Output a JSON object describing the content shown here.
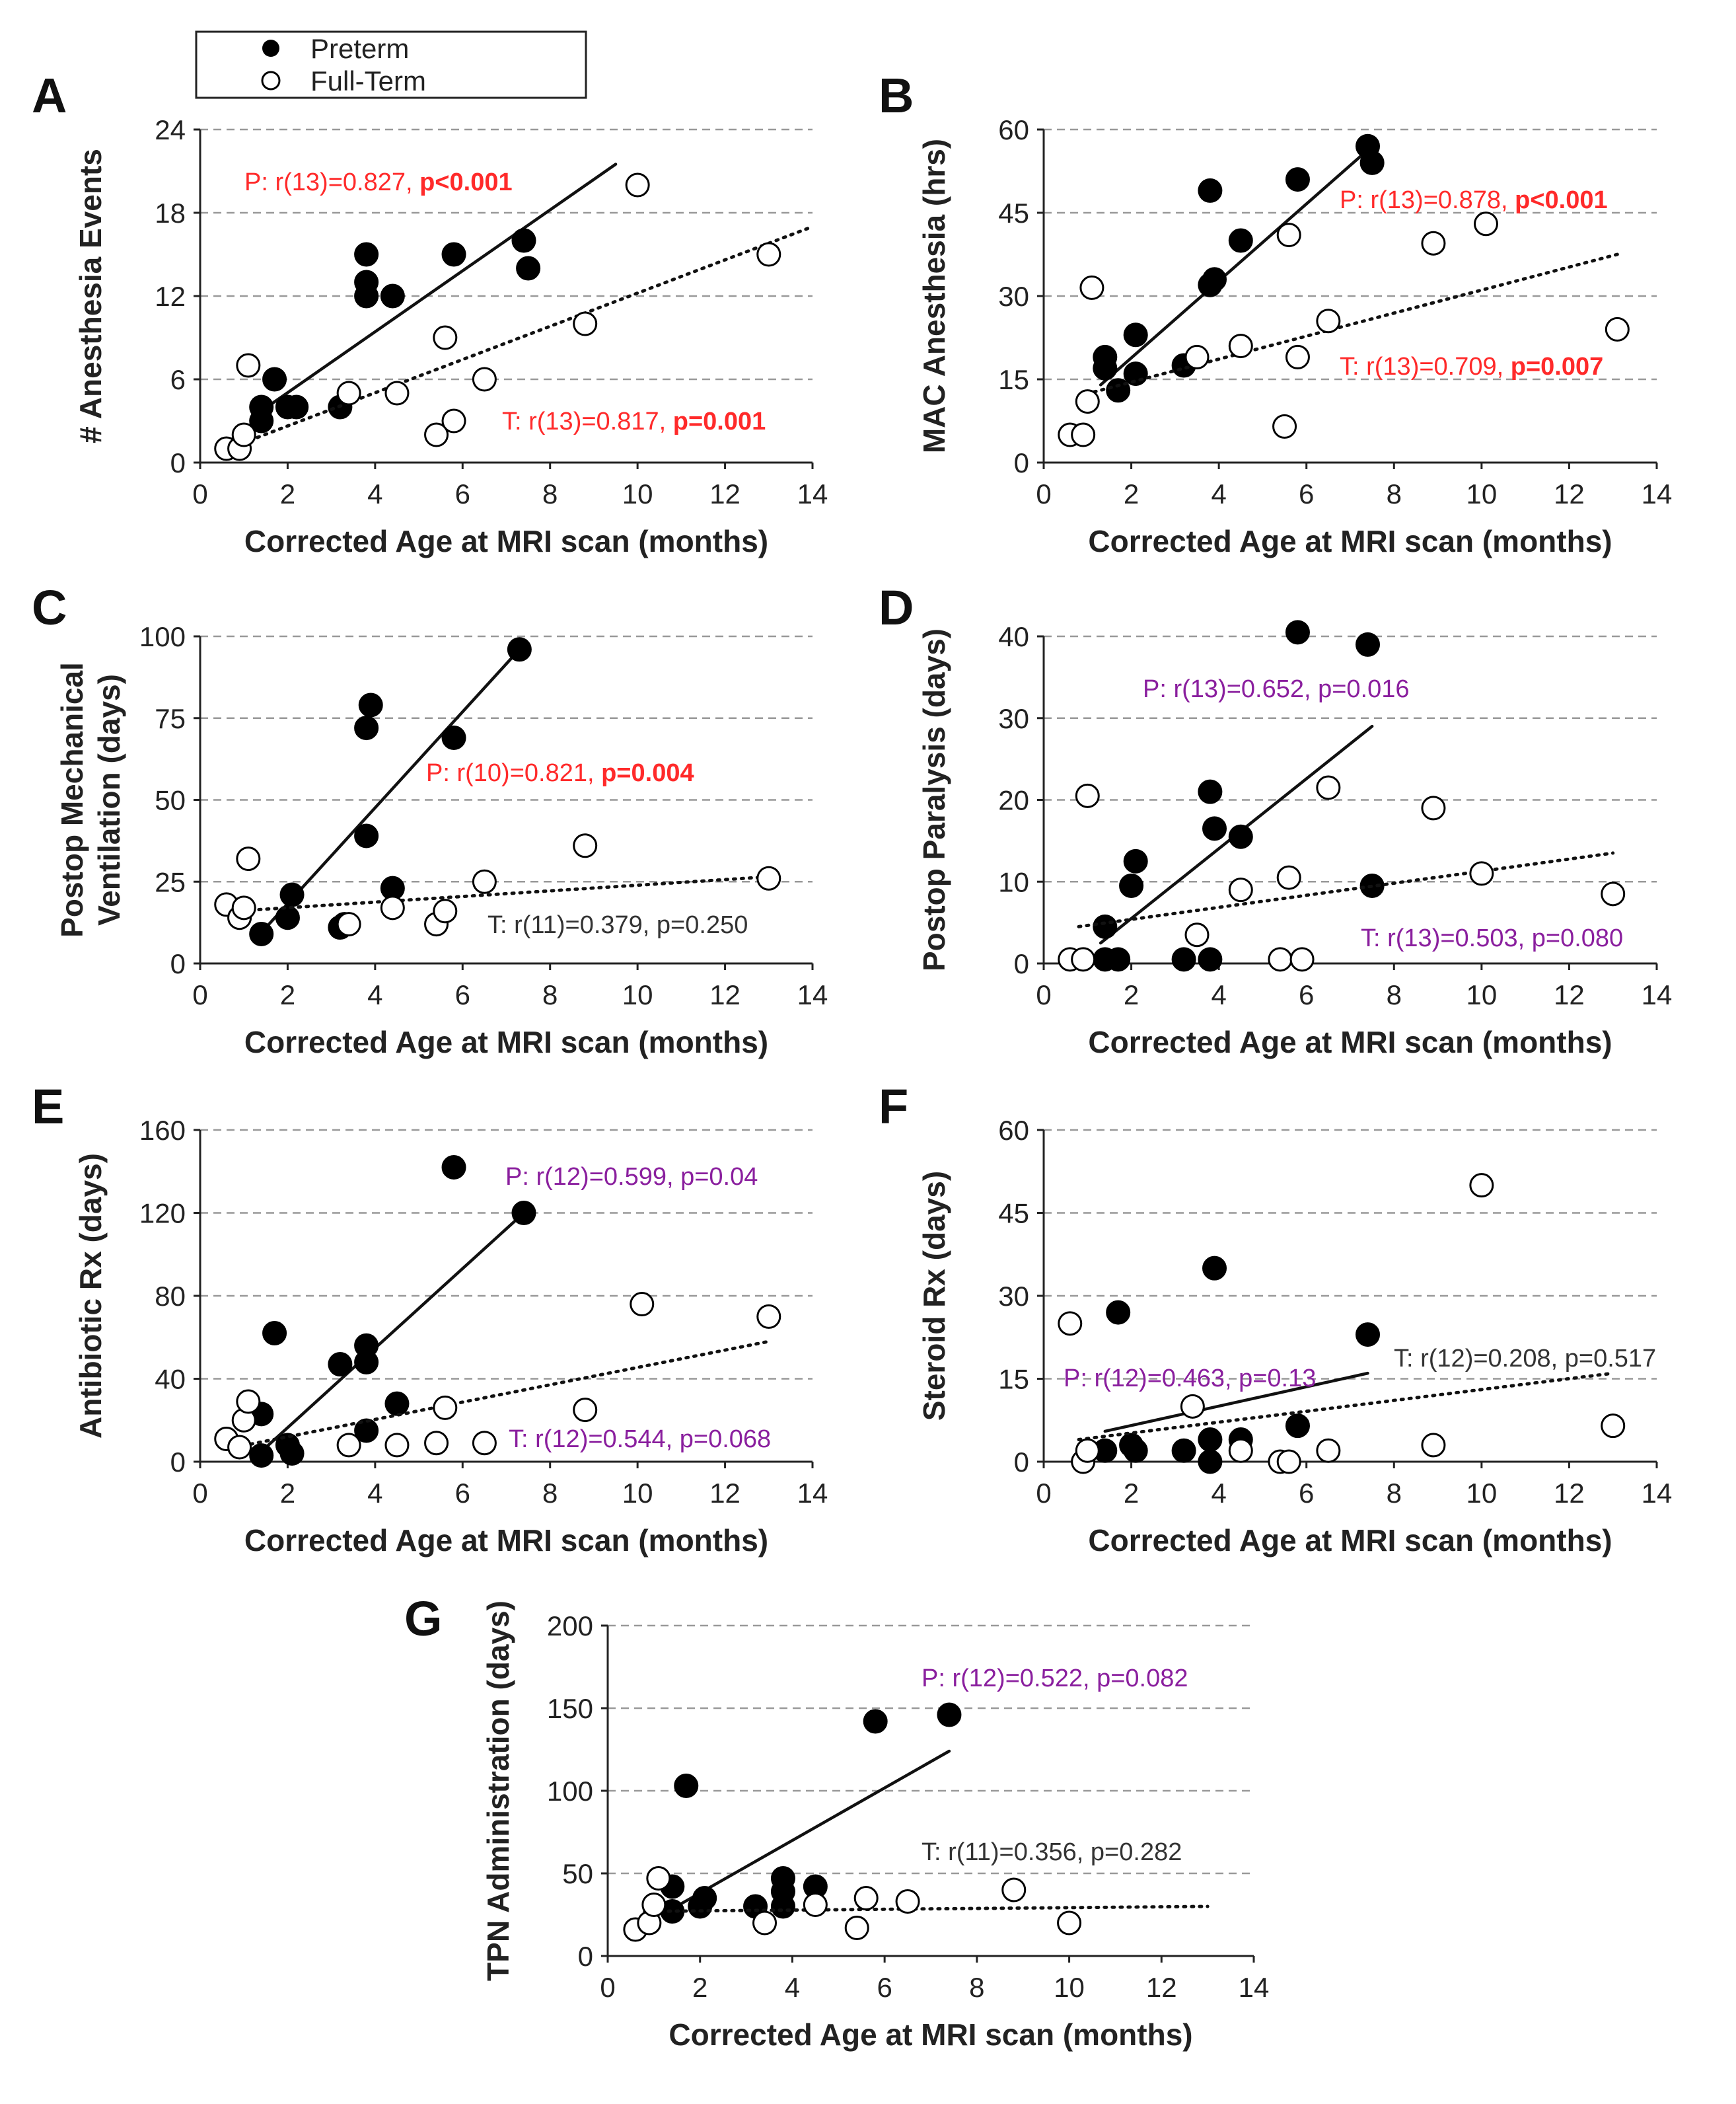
{
  "legend": {
    "preterm_label": "Preterm",
    "fullterm_label": "Full-Term"
  },
  "colors": {
    "red": "#ff2a2a",
    "purple": "#8a1f9e",
    "dark": "#333333",
    "grid": "#999999"
  },
  "chart_data": [
    {
      "letter": "A",
      "type": "scatter",
      "title": "",
      "ylabel": "# Anesthesia Events",
      "xlabel": "Corrected Age at MRI scan (months)",
      "ylim": [
        0,
        24
      ],
      "yticks": [
        0,
        6,
        12,
        18,
        24
      ],
      "xlim": [
        0,
        14
      ],
      "xticks": [
        0,
        2,
        4,
        6,
        8,
        10,
        12,
        14
      ],
      "series": [
        {
          "name": "Preterm",
          "points": [
            [
              1.4,
              3
            ],
            [
              1.4,
              4
            ],
            [
              1.7,
              6
            ],
            [
              2,
              4
            ],
            [
              2.2,
              4
            ],
            [
              3.2,
              4
            ],
            [
              3.8,
              15
            ],
            [
              3.8,
              13
            ],
            [
              3.8,
              12
            ],
            [
              4.4,
              12
            ],
            [
              5.8,
              15
            ],
            [
              7.4,
              16
            ],
            [
              7.5,
              14
            ]
          ],
          "fit": [
            [
              1.3,
              3.5
            ],
            [
              9.5,
              21.5
            ]
          ]
        },
        {
          "name": "Full-Term",
          "points": [
            [
              0.6,
              1
            ],
            [
              0.9,
              1
            ],
            [
              1,
              2
            ],
            [
              1.1,
              7
            ],
            [
              3.4,
              5
            ],
            [
              4.5,
              5
            ],
            [
              5.4,
              2
            ],
            [
              5.6,
              9
            ],
            [
              5.8,
              3
            ],
            [
              6.5,
              6
            ],
            [
              8.8,
              10
            ],
            [
              10,
              20
            ],
            [
              13,
              15
            ]
          ],
          "fit": [
            [
              0.8,
              1.2
            ],
            [
              14,
              17
            ]
          ]
        }
      ],
      "annotations": [
        {
          "text": "P: r(13)=0.827, ",
          "bold": "p<0.001",
          "color": "#ff2a2a"
        },
        {
          "text": "T: r(13)=0.817, ",
          "bold": "p=0.001",
          "color": "#ff2a2a"
        }
      ]
    },
    {
      "letter": "B",
      "type": "scatter",
      "title": "",
      "ylabel": "MAC Anesthesia (hrs)",
      "xlabel": "Corrected Age at MRI scan (months)",
      "ylim": [
        0,
        60
      ],
      "yticks": [
        0,
        15,
        30,
        45,
        60
      ],
      "xlim": [
        0,
        14
      ],
      "xticks": [
        0,
        2,
        4,
        6,
        8,
        10,
        12,
        14
      ],
      "series": [
        {
          "name": "Preterm",
          "points": [
            [
              1.4,
              19
            ],
            [
              1.4,
              17
            ],
            [
              1.7,
              13
            ],
            [
              2.1,
              23
            ],
            [
              2.1,
              16
            ],
            [
              3.2,
              17.5
            ],
            [
              3.8,
              32
            ],
            [
              3.9,
              33
            ],
            [
              3.8,
              49
            ],
            [
              4.5,
              40
            ],
            [
              5.8,
              51
            ],
            [
              7.4,
              57
            ],
            [
              7.5,
              54
            ]
          ],
          "fit": [
            [
              1.3,
              14
            ],
            [
              7.5,
              57
            ]
          ]
        },
        {
          "name": "Full-Term",
          "points": [
            [
              0.6,
              5
            ],
            [
              0.9,
              5
            ],
            [
              1,
              11
            ],
            [
              1.1,
              31.5
            ],
            [
              3.5,
              19
            ],
            [
              4.5,
              21
            ],
            [
              5.5,
              6.5
            ],
            [
              5.6,
              41
            ],
            [
              5.8,
              19
            ],
            [
              6.5,
              25.5
            ],
            [
              8.9,
              39.5
            ],
            [
              10.1,
              43
            ],
            [
              13.1,
              24
            ]
          ],
          "fit": [
            [
              0.8,
              12
            ],
            [
              13.1,
              37.5
            ]
          ]
        }
      ],
      "annotations": [
        {
          "text": "P: r(13)=0.878, ",
          "bold": "p<0.001",
          "color": "#ff2a2a"
        },
        {
          "text": "T: r(13)=0.709, ",
          "bold": "p=0.007",
          "color": "#ff2a2a"
        }
      ]
    },
    {
      "letter": "C",
      "type": "scatter",
      "title": "",
      "ylabel": "Postop Mechanical Ventilation (days)",
      "xlabel": "Corrected Age at MRI scan (months)",
      "ylim": [
        0,
        100
      ],
      "yticks": [
        0,
        25,
        50,
        75,
        100
      ],
      "xlim": [
        0,
        14
      ],
      "xticks": [
        0,
        2,
        4,
        6,
        8,
        10,
        12,
        14
      ],
      "series": [
        {
          "name": "Preterm",
          "points": [
            [
              1.4,
              9
            ],
            [
              2,
              14
            ],
            [
              2.1,
              21
            ],
            [
              3.2,
              11
            ],
            [
              3.3,
              12
            ],
            [
              3.8,
              39
            ],
            [
              3.8,
              72
            ],
            [
              3.9,
              79
            ],
            [
              4.4,
              23
            ],
            [
              5.8,
              69
            ],
            [
              7.3,
              96
            ]
          ],
          "fit": [
            [
              1.3,
              8
            ],
            [
              7.3,
              96
            ]
          ]
        },
        {
          "name": "Full-Term",
          "points": [
            [
              0.6,
              18
            ],
            [
              0.9,
              14
            ],
            [
              1,
              17
            ],
            [
              1.1,
              32
            ],
            [
              3.4,
              12
            ],
            [
              4.4,
              17
            ],
            [
              5.4,
              12
            ],
            [
              5.6,
              16
            ],
            [
              6.5,
              25
            ],
            [
              8.8,
              36
            ],
            [
              13,
              26
            ]
          ],
          "fit": [
            [
              0.8,
              16
            ],
            [
              13,
              26.5
            ]
          ]
        }
      ],
      "annotations": [
        {
          "text": "P: r(10)=0.821, ",
          "bold": "p=0.004",
          "color": "#ff2a2a"
        },
        {
          "text": "T: r(11)=0.379, p=0.250",
          "bold": "",
          "color": "#333333"
        }
      ]
    },
    {
      "letter": "D",
      "type": "scatter",
      "title": "",
      "ylabel": "Postop Paralysis (days)",
      "xlabel": "Corrected Age at MRI scan (months)",
      "ylim": [
        0,
        40
      ],
      "yticks": [
        0,
        10,
        20,
        30,
        40
      ],
      "xlim": [
        0,
        14
      ],
      "xticks": [
        0,
        2,
        4,
        6,
        8,
        10,
        12,
        14
      ],
      "series": [
        {
          "name": "Preterm",
          "points": [
            [
              1.4,
              4.5
            ],
            [
              1.4,
              0.5
            ],
            [
              1.7,
              0.5
            ],
            [
              2,
              9.5
            ],
            [
              2.1,
              12.5
            ],
            [
              3.2,
              0.5
            ],
            [
              3.8,
              0.5
            ],
            [
              3.8,
              21
            ],
            [
              3.9,
              16.5
            ],
            [
              4.5,
              15.5
            ],
            [
              5.8,
              40.5
            ],
            [
              7.4,
              39
            ],
            [
              7.5,
              9.5
            ]
          ],
          "fit": [
            [
              1.3,
              2.5
            ],
            [
              7.5,
              29
            ]
          ]
        },
        {
          "name": "Full-Term",
          "points": [
            [
              0.6,
              0.5
            ],
            [
              0.9,
              0.5
            ],
            [
              1,
              20.5
            ],
            [
              3.5,
              3.5
            ],
            [
              4.5,
              9
            ],
            [
              5.4,
              0.5
            ],
            [
              5.6,
              10.5
            ],
            [
              5.9,
              0.5
            ],
            [
              6.5,
              21.5
            ],
            [
              8.9,
              19
            ],
            [
              10,
              11
            ],
            [
              13,
              8.5
            ]
          ],
          "fit": [
            [
              0.8,
              4.5
            ],
            [
              13,
              13.5
            ]
          ]
        }
      ],
      "annotations": [
        {
          "text": "P: r(13)=0.652, p=0.016",
          "bold": "",
          "color": "#8a1f9e"
        },
        {
          "text": "T: r(13)=0.503, p=0.080",
          "bold": "",
          "color": "#8a1f9e"
        }
      ]
    },
    {
      "letter": "E",
      "type": "scatter",
      "title": "",
      "ylabel": "Antibiotic Rx (days)",
      "xlabel": "Corrected Age at MRI scan (months)",
      "ylim": [
        0,
        160
      ],
      "yticks": [
        0,
        40,
        80,
        120,
        160
      ],
      "xlim": [
        0,
        14
      ],
      "xticks": [
        0,
        2,
        4,
        6,
        8,
        10,
        12,
        14
      ],
      "series": [
        {
          "name": "Preterm",
          "points": [
            [
              1.4,
              3
            ],
            [
              1.4,
              23
            ],
            [
              1.7,
              62
            ],
            [
              2,
              8
            ],
            [
              2.1,
              4
            ],
            [
              3.2,
              47
            ],
            [
              3.8,
              15
            ],
            [
              3.8,
              48
            ],
            [
              3.8,
              56
            ],
            [
              4.5,
              28
            ],
            [
              5.8,
              142
            ],
            [
              7.4,
              120
            ]
          ],
          "fit": [
            [
              1.3,
              3
            ],
            [
              7.4,
              120
            ]
          ]
        },
        {
          "name": "Full-Term",
          "points": [
            [
              0.6,
              11
            ],
            [
              0.9,
              7
            ],
            [
              1,
              20
            ],
            [
              1.1,
              29
            ],
            [
              3.4,
              8
            ],
            [
              4.5,
              8
            ],
            [
              5.4,
              9
            ],
            [
              5.6,
              26
            ],
            [
              6.5,
              9
            ],
            [
              8.8,
              25
            ],
            [
              10.1,
              76
            ],
            [
              13,
              70
            ]
          ],
          "fit": [
            [
              0.8,
              7
            ],
            [
              13,
              58
            ]
          ]
        }
      ],
      "annotations": [
        {
          "text": "P: r(12)=0.599, p=0.04",
          "bold": "",
          "color": "#8a1f9e"
        },
        {
          "text": "T: r(12)=0.544, p=0.068",
          "bold": "",
          "color": "#8a1f9e"
        }
      ]
    },
    {
      "letter": "F",
      "type": "scatter",
      "title": "",
      "ylabel": "Steroid Rx (days)",
      "xlabel": "Corrected Age at MRI scan (months)",
      "ylim": [
        0,
        60
      ],
      "yticks": [
        0,
        15,
        30,
        45,
        60
      ],
      "xlim": [
        0,
        14
      ],
      "xticks": [
        0,
        2,
        4,
        6,
        8,
        10,
        12,
        14
      ],
      "series": [
        {
          "name": "Preterm",
          "points": [
            [
              1.4,
              2
            ],
            [
              1.7,
              27
            ],
            [
              2,
              3
            ],
            [
              2.1,
              2
            ],
            [
              3.2,
              2
            ],
            [
              3.8,
              0
            ],
            [
              3.8,
              4
            ],
            [
              3.9,
              35
            ],
            [
              4.5,
              4
            ],
            [
              5.8,
              6.5
            ],
            [
              7.4,
              23
            ]
          ],
          "fit": [
            [
              1.4,
              5.5
            ],
            [
              7.4,
              16
            ]
          ]
        },
        {
          "name": "Full-Term",
          "points": [
            [
              0.6,
              25
            ],
            [
              0.9,
              0
            ],
            [
              1,
              2
            ],
            [
              3.4,
              10
            ],
            [
              4.5,
              2
            ],
            [
              5.4,
              0
            ],
            [
              5.6,
              0
            ],
            [
              6.5,
              2
            ],
            [
              8.9,
              3
            ],
            [
              10,
              50
            ],
            [
              13,
              6.5
            ]
          ],
          "fit": [
            [
              0.8,
              4
            ],
            [
              13,
              16
            ]
          ]
        }
      ],
      "annotations": [
        {
          "text": "P: r(12)=0.463, p=0.13",
          "bold": "",
          "color": "#8a1f9e"
        },
        {
          "text": "T: r(12)=0.208, p=0.517",
          "bold": "",
          "color": "#333333"
        }
      ]
    },
    {
      "letter": "G",
      "type": "scatter",
      "title": "",
      "ylabel": "TPN Administration (days)",
      "xlabel": "Corrected Age at MRI scan (months)",
      "ylim": [
        0,
        200
      ],
      "yticks": [
        0,
        50,
        100,
        150,
        200
      ],
      "xlim": [
        0,
        14
      ],
      "xticks": [
        0,
        2,
        4,
        6,
        8,
        10,
        12,
        14
      ],
      "series": [
        {
          "name": "Preterm",
          "points": [
            [
              1.4,
              42
            ],
            [
              1.4,
              27
            ],
            [
              1.7,
              103
            ],
            [
              2,
              30
            ],
            [
              2.1,
              35
            ],
            [
              3.2,
              30
            ],
            [
              3.8,
              30
            ],
            [
              3.8,
              39
            ],
            [
              3.8,
              47
            ],
            [
              4.5,
              42
            ],
            [
              5.8,
              142
            ],
            [
              7.4,
              146
            ]
          ],
          "fit": [
            [
              1.3,
              27
            ],
            [
              7.4,
              124
            ]
          ]
        },
        {
          "name": "Full-Term",
          "points": [
            [
              0.6,
              16
            ],
            [
              0.9,
              20
            ],
            [
              1,
              31
            ],
            [
              1.1,
              47
            ],
            [
              3.4,
              20
            ],
            [
              4.5,
              31
            ],
            [
              5.4,
              17
            ],
            [
              5.6,
              35
            ],
            [
              6.5,
              33
            ],
            [
              8.8,
              40
            ],
            [
              10,
              20
            ]
          ],
          "fit": [
            [
              0.8,
              27
            ],
            [
              13,
              30
            ]
          ]
        }
      ],
      "annotations": [
        {
          "text": "P: r(12)=0.522, p=0.082",
          "bold": "",
          "color": "#8a1f9e"
        },
        {
          "text": "T: r(11)=0.356, p=0.282",
          "bold": "",
          "color": "#333333"
        }
      ]
    }
  ]
}
